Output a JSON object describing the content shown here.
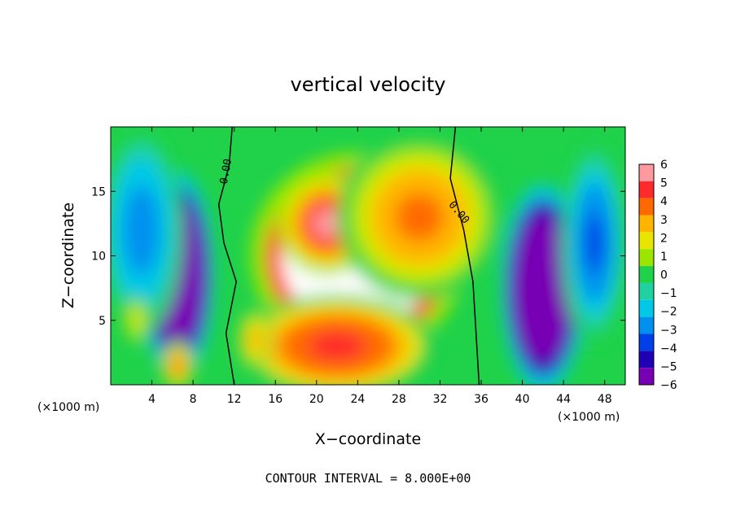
{
  "chart_data": {
    "type": "heatmap",
    "title": "vertical velocity",
    "xlabel": "X−coordinate",
    "ylabel": "Z−coordinate",
    "x_unit_label": "(×1000 m)",
    "x_unit_label_right": "(×1000 m)",
    "xlim": [
      0,
      50
    ],
    "ylim": [
      0,
      20
    ],
    "x_ticks": [
      4,
      8,
      12,
      16,
      20,
      24,
      28,
      32,
      36,
      40,
      44,
      48
    ],
    "x_tick_labels": [
      "4",
      "8",
      "12",
      "16",
      "20",
      "24",
      "28",
      "32",
      "36",
      "40",
      "44",
      "48"
    ],
    "y_ticks": [
      5,
      10,
      15
    ],
    "y_tick_labels": [
      "5",
      "10",
      "15"
    ],
    "colorbar": {
      "levels": [
        6,
        5,
        4,
        3,
        2,
        1,
        0,
        -1,
        -2,
        -3,
        -4,
        -5,
        -6
      ],
      "labels": [
        "6",
        "5",
        "4",
        "3",
        "2",
        "1",
        "0",
        "−1",
        "−2",
        "−3",
        "−4",
        "−5",
        "−6"
      ],
      "colors": [
        "#ff9aa0",
        "#ff2a2a",
        "#ff6a00",
        "#ffb400",
        "#e6e600",
        "#9be600",
        "#1fd24a",
        "#20d2a0",
        "#00c8e6",
        "#0090f0",
        "#0040e8",
        "#2000b4",
        "#7800b4"
      ],
      "over_color": "#ffffff"
    },
    "contour_labels": [
      "0.00",
      "0.00"
    ],
    "annotation": "CONTOUR INTERVAL = 8.000E+00",
    "features": [
      {
        "kind": "updraft",
        "x": 24,
        "z": 10,
        "sx": 6.5,
        "sz": 5,
        "amp": 14
      },
      {
        "kind": "updraft",
        "x": 21,
        "z": 12.5,
        "sx": 3,
        "sz": 2.5,
        "amp": 6
      },
      {
        "kind": "updraft",
        "x": 22,
        "z": 3,
        "sx": 6,
        "sz": 2.5,
        "amp": 5
      },
      {
        "kind": "updraft",
        "x": 30,
        "z": 13,
        "sx": 5,
        "sz": 4,
        "amp": 4
      },
      {
        "kind": "downdraft",
        "x": 6.5,
        "z": 8.5,
        "sx": 2.2,
        "sz": 5,
        "amp": -16
      },
      {
        "kind": "downdraft",
        "x": 42,
        "z": 7.5,
        "sx": 2.5,
        "sz": 5,
        "amp": -16
      },
      {
        "kind": "downdraft",
        "x": 47,
        "z": 11,
        "sx": 2,
        "sz": 5,
        "amp": -4
      },
      {
        "kind": "downdraft",
        "x": 3,
        "z": 12,
        "sx": 2.5,
        "sz": 5,
        "amp": -3
      },
      {
        "kind": "weak_updraft",
        "x": 6.5,
        "z": 1.5,
        "sx": 1,
        "sz": 1.2,
        "amp": 4
      },
      {
        "kind": "weak_updraft",
        "x": 2.5,
        "z": 5,
        "sx": 0.7,
        "sz": 1.2,
        "amp": 2
      },
      {
        "kind": "weak_updraft",
        "x": 14,
        "z": 3.5,
        "sx": 1,
        "sz": 1.5,
        "amp": 3
      }
    ]
  }
}
